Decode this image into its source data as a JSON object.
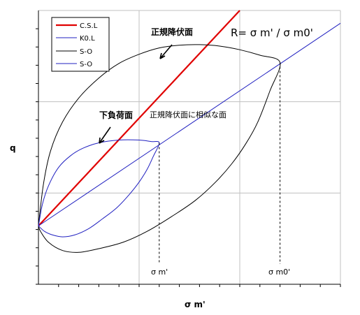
{
  "chart_data": {
    "type": "line",
    "title": "",
    "xlabel": "σ m'",
    "ylabel": "q",
    "xlim": [
      0,
      15
    ],
    "ylim": [
      0,
      15
    ],
    "grid": true,
    "legend_position": "top-left",
    "series": [
      {
        "key": "csl",
        "name": "C.S.L",
        "color": "#e00000",
        "width": 2.2,
        "points": [
          [
            0,
            3.2
          ],
          [
            10,
            15
          ]
        ]
      },
      {
        "key": "k0l",
        "name": "K0.L",
        "color": "#2020c0",
        "width": 1,
        "points": [
          [
            0,
            3.2
          ],
          [
            15,
            14.3
          ]
        ]
      },
      {
        "key": "so_large",
        "name": "S-O",
        "color": "#000000",
        "width": 1,
        "points": [
          [
            0,
            3.2
          ],
          [
            0.25,
            5.5
          ],
          [
            0.6,
            7.3
          ],
          [
            1.2,
            8.9
          ],
          [
            2,
            10.2
          ],
          [
            3,
            11.3
          ],
          [
            4,
            12.1
          ],
          [
            5,
            12.6
          ],
          [
            6,
            12.95
          ],
          [
            7,
            13.1
          ],
          [
            8,
            13.13
          ],
          [
            9,
            13.05
          ],
          [
            10,
            12.85
          ],
          [
            11,
            12.55
          ],
          [
            12,
            12.15
          ],
          [
            11.5,
            10.6
          ],
          [
            10.9,
            8.9
          ],
          [
            10.3,
            7.7
          ],
          [
            9.6,
            6.6
          ],
          [
            8.8,
            5.6
          ],
          [
            7.8,
            4.6
          ],
          [
            6.6,
            3.7
          ],
          [
            5.4,
            2.9
          ],
          [
            4.2,
            2.3
          ],
          [
            3,
            1.95
          ],
          [
            2,
            1.75
          ],
          [
            1.2,
            1.85
          ],
          [
            0.5,
            2.3
          ],
          [
            0.1,
            2.9
          ],
          [
            0,
            3.2
          ]
        ]
      },
      {
        "key": "so_small",
        "name": "S-O",
        "color": "#2020c0",
        "width": 1,
        "points": [
          [
            0,
            3.2
          ],
          [
            0.2,
            4.4
          ],
          [
            0.5,
            5.4
          ],
          [
            1,
            6.4
          ],
          [
            1.6,
            7.05
          ],
          [
            2.2,
            7.45
          ],
          [
            3,
            7.75
          ],
          [
            4,
            7.9
          ],
          [
            5,
            7.9
          ],
          [
            5.6,
            7.82
          ],
          [
            6,
            7.75
          ],
          [
            5.7,
            7.0
          ],
          [
            5.4,
            6.3
          ],
          [
            5.0,
            5.6
          ],
          [
            4.5,
            4.9
          ],
          [
            3.9,
            4.2
          ],
          [
            3.2,
            3.6
          ],
          [
            2.5,
            3.05
          ],
          [
            1.8,
            2.7
          ],
          [
            1.2,
            2.6
          ],
          [
            0.7,
            2.7
          ],
          [
            0.3,
            2.9
          ],
          [
            0,
            3.2
          ]
        ]
      }
    ],
    "points": {
      "sm": {
        "x": 6,
        "y": 7.75,
        "label": "σ m'"
      },
      "sm0": {
        "x": 12,
        "y": 12.15,
        "label": "σ m0'"
      }
    },
    "annotations": {
      "yield_surface": "正規降伏面",
      "loading_surface": "下負荷面",
      "similar_surface": "正規降伏面に相似な面",
      "ratio": "R= σ m' / σ m0'"
    }
  }
}
